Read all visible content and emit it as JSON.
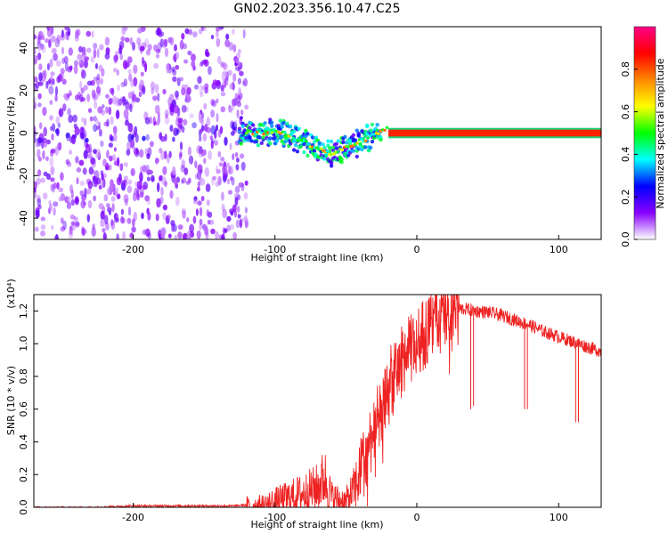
{
  "title": "GN02.2023.356.10.47.C25",
  "chart_data": [
    {
      "type": "heatmap",
      "xlabel": "Height of straight line (km)",
      "ylabel": "Frequency (Hz)",
      "xlim": [
        -270,
        130
      ],
      "ylim": [
        -50,
        50
      ],
      "x_ticks": [
        -200,
        -100,
        0,
        100
      ],
      "x_tick_labels": [
        "-200",
        "-100",
        "0",
        "100"
      ],
      "y_ticks": [
        -40,
        -20,
        0,
        20,
        40
      ],
      "y_tick_labels": [
        "-40",
        "-20",
        "0",
        "20",
        "40"
      ],
      "colorbar": {
        "label": "Normalized spectral amplitude",
        "range": [
          0,
          1
        ],
        "ticks": [
          0.0,
          0.2,
          0.4,
          0.6,
          0.8
        ],
        "tick_labels": [
          "0.0",
          "0.2",
          "0.4",
          "0.6",
          "0.8"
        ],
        "colors": [
          "#ffffff",
          "#8800ff",
          "#0000ff",
          "#00ffff",
          "#00ff00",
          "#ffff00",
          "#ff8800",
          "#ff0000",
          "#ff0088"
        ]
      },
      "noise_region_x": [
        -270,
        -120
      ],
      "signal_track": [
        {
          "x": -125,
          "y": 1
        },
        {
          "x": -110,
          "y": 0
        },
        {
          "x": -100,
          "y": 1
        },
        {
          "x": -90,
          "y": -1
        },
        {
          "x": -80,
          "y": -4
        },
        {
          "x": -70,
          "y": -7
        },
        {
          "x": -60,
          "y": -10
        },
        {
          "x": -50,
          "y": -7
        },
        {
          "x": -40,
          "y": -4
        },
        {
          "x": -30,
          "y": -1
        },
        {
          "x": -22,
          "y": 2
        },
        {
          "x": -10,
          "y": 0
        },
        {
          "x": 0,
          "y": 0
        },
        {
          "x": 20,
          "y": 0
        },
        {
          "x": 60,
          "y": 0
        },
        {
          "x": 130,
          "y": 0
        }
      ]
    },
    {
      "type": "line",
      "xlabel": "Height of straight line (km)",
      "ylabel": "SNR (10 * v/v)",
      "y_multiplier": "(x10⁴)",
      "xlim": [
        -270,
        130
      ],
      "ylim": [
        0,
        1.3
      ],
      "x_ticks": [
        -200,
        -100,
        0,
        100
      ],
      "x_tick_labels": [
        "-200",
        "-100",
        "0",
        "100"
      ],
      "y_ticks": [
        0.0,
        0.2,
        0.4,
        0.6,
        0.8,
        1.0,
        1.2
      ],
      "y_tick_labels": [
        "0.0",
        "0.2",
        "0.4",
        "0.6",
        "0.8",
        "1.0",
        "1.2"
      ],
      "color": "#ee2222",
      "series": [
        {
          "x": [
            -270,
            -250,
            -230,
            -200,
            -180,
            -150,
            -130,
            -110,
            -100,
            -90,
            -80,
            -70,
            -65,
            -60,
            -55,
            -50,
            -45,
            -40,
            -35,
            -30,
            -25,
            -20,
            -15,
            -10,
            -5,
            0,
            5,
            10,
            15,
            20,
            25,
            30,
            35,
            40,
            50,
            60,
            70,
            80,
            90,
            100,
            110,
            120,
            130
          ],
          "y": [
            0.0,
            0.0,
            0.0,
            0.01,
            0.01,
            0.01,
            0.01,
            0.02,
            0.05,
            0.08,
            0.11,
            0.15,
            0.22,
            0.08,
            0.06,
            0.05,
            0.12,
            0.25,
            0.38,
            0.55,
            0.6,
            0.75,
            0.85,
            0.95,
            1.0,
            1.05,
            1.1,
            1.15,
            1.18,
            1.2,
            1.21,
            1.22,
            1.22,
            1.21,
            1.2,
            1.18,
            1.15,
            1.12,
            1.08,
            1.05,
            1.02,
            0.99,
            0.96
          ]
        }
      ]
    }
  ]
}
